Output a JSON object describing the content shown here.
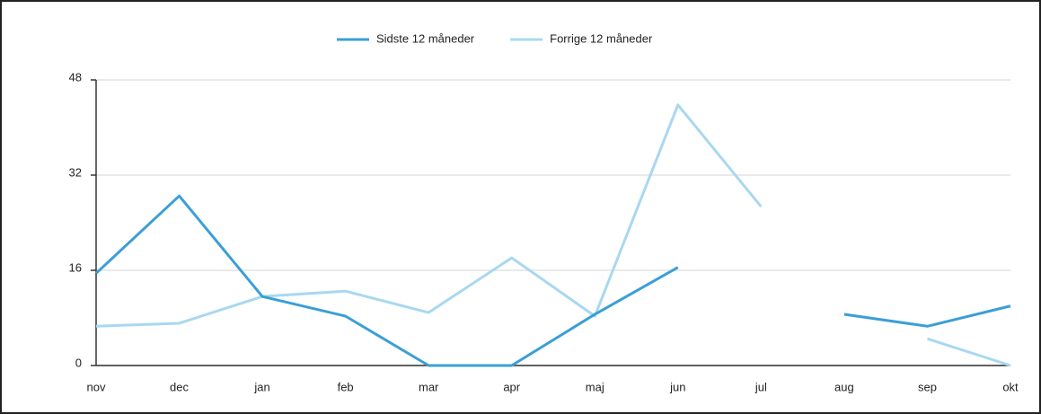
{
  "chart_data": {
    "type": "line",
    "categories": [
      "nov",
      "dec",
      "jan",
      "feb",
      "mar",
      "apr",
      "maj",
      "jun",
      "jul",
      "aug",
      "sep",
      "okt"
    ],
    "series": [
      {
        "name": "Sidste 12 måneder",
        "color": "#3a9fd6",
        "values": [
          15.5,
          28.5,
          11.6,
          8.3,
          0,
          0,
          8.6,
          16.5,
          null,
          8.6,
          6.6,
          10
        ]
      },
      {
        "name": "Forrige 12 måneder",
        "color": "#a8d8f0",
        "values": [
          6.6,
          7.1,
          11.6,
          12.5,
          8.9,
          18.1,
          8.3,
          43.8,
          26.7,
          null,
          4.5,
          0
        ]
      }
    ],
    "ylim": [
      0,
      48
    ],
    "yticks": [
      0,
      16,
      32,
      48
    ],
    "grid": true,
    "legend": "top"
  }
}
